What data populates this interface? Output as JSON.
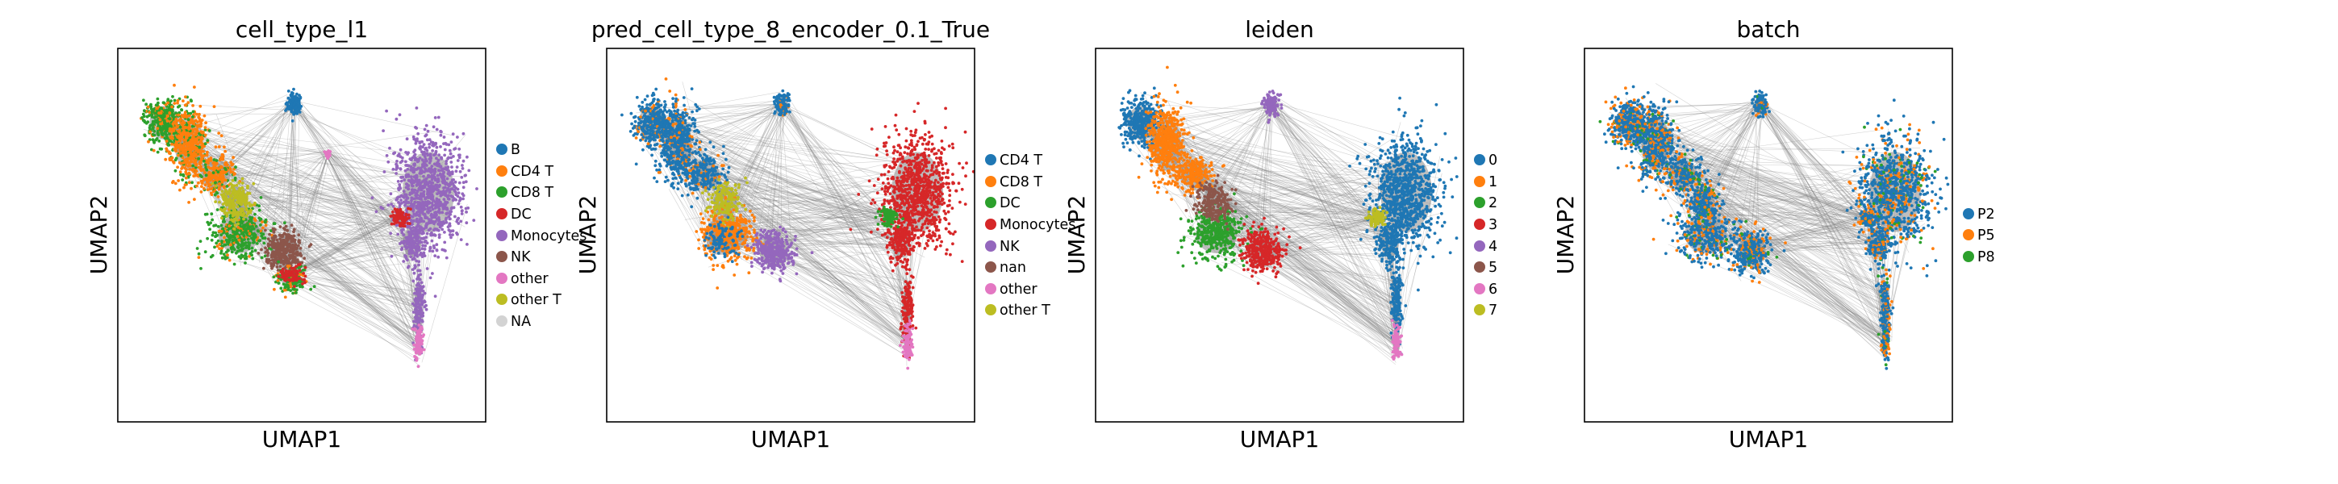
{
  "figure": {
    "panels": [
      {
        "title": "cell_type_l1",
        "xlabel": "UMAP1",
        "ylabel": "UMAP2",
        "legend": [
          {
            "label": "B",
            "color": "#1f77b4"
          },
          {
            "label": "CD4 T",
            "color": "#ff7f0e"
          },
          {
            "label": "CD8 T",
            "color": "#2ca02c"
          },
          {
            "label": "DC",
            "color": "#d62728"
          },
          {
            "label": "Monocytes",
            "color": "#9467bd"
          },
          {
            "label": "NK",
            "color": "#8c564b"
          },
          {
            "label": "other",
            "color": "#e377c2"
          },
          {
            "label": "other T",
            "color": "#bcbd22"
          },
          {
            "label": "NA",
            "color": "#d3d3d3"
          }
        ]
      },
      {
        "title": "pred_cell_type_8_encoder_0.1_True",
        "xlabel": "UMAP1",
        "ylabel": "UMAP2",
        "legend": [
          {
            "label": "CD4 T",
            "color": "#1f77b4"
          },
          {
            "label": "CD8 T",
            "color": "#ff7f0e"
          },
          {
            "label": "DC",
            "color": "#2ca02c"
          },
          {
            "label": "Monocytes",
            "color": "#d62728"
          },
          {
            "label": "NK",
            "color": "#9467bd"
          },
          {
            "label": "nan",
            "color": "#8c564b"
          },
          {
            "label": "other",
            "color": "#e377c2"
          },
          {
            "label": "other T",
            "color": "#bcbd22"
          }
        ]
      },
      {
        "title": "leiden",
        "xlabel": "UMAP1",
        "ylabel": "UMAP2",
        "legend": [
          {
            "label": "0",
            "color": "#1f77b4"
          },
          {
            "label": "1",
            "color": "#ff7f0e"
          },
          {
            "label": "2",
            "color": "#2ca02c"
          },
          {
            "label": "3",
            "color": "#d62728"
          },
          {
            "label": "4",
            "color": "#9467bd"
          },
          {
            "label": "5",
            "color": "#8c564b"
          },
          {
            "label": "6",
            "color": "#e377c2"
          },
          {
            "label": "7",
            "color": "#bcbd22"
          }
        ]
      },
      {
        "title": "batch",
        "xlabel": "UMAP1",
        "ylabel": "UMAP2",
        "legend": [
          {
            "label": "P2",
            "color": "#1f77b4"
          },
          {
            "label": "P5",
            "color": "#ff7f0e"
          },
          {
            "label": "P8",
            "color": "#2ca02c"
          }
        ]
      }
    ]
  },
  "chart_data": [
    {
      "type": "scatter",
      "title": "cell_type_l1",
      "xlabel": "UMAP1",
      "ylabel": "UMAP2",
      "grid": false,
      "legend_placement": "right",
      "edges_color": "#808080",
      "series": [
        {
          "name": "B",
          "color": "#1f77b4"
        },
        {
          "name": "CD4 T",
          "color": "#ff7f0e"
        },
        {
          "name": "CD8 T",
          "color": "#2ca02c"
        },
        {
          "name": "DC",
          "color": "#d62728"
        },
        {
          "name": "Monocytes",
          "color": "#9467bd"
        },
        {
          "name": "NK",
          "color": "#8c564b"
        },
        {
          "name": "other",
          "color": "#e377c2"
        },
        {
          "name": "other T",
          "color": "#bcbd22"
        },
        {
          "name": "NA",
          "color": "#d3d3d3"
        }
      ]
    },
    {
      "type": "scatter",
      "title": "pred_cell_type_8_encoder_0.1_True",
      "xlabel": "UMAP1",
      "ylabel": "UMAP2",
      "grid": false,
      "legend_placement": "right",
      "edges_color": "#808080",
      "series": [
        {
          "name": "CD4 T",
          "color": "#1f77b4"
        },
        {
          "name": "CD8 T",
          "color": "#ff7f0e"
        },
        {
          "name": "DC",
          "color": "#2ca02c"
        },
        {
          "name": "Monocytes",
          "color": "#d62728"
        },
        {
          "name": "NK",
          "color": "#9467bd"
        },
        {
          "name": "nan",
          "color": "#8c564b"
        },
        {
          "name": "other",
          "color": "#e377c2"
        },
        {
          "name": "other T",
          "color": "#bcbd22"
        }
      ]
    },
    {
      "type": "scatter",
      "title": "leiden",
      "xlabel": "UMAP1",
      "ylabel": "UMAP2",
      "grid": false,
      "legend_placement": "right",
      "edges_color": "#808080",
      "series": [
        {
          "name": "0",
          "color": "#1f77b4"
        },
        {
          "name": "1",
          "color": "#ff7f0e"
        },
        {
          "name": "2",
          "color": "#2ca02c"
        },
        {
          "name": "3",
          "color": "#d62728"
        },
        {
          "name": "4",
          "color": "#9467bd"
        },
        {
          "name": "5",
          "color": "#8c564b"
        },
        {
          "name": "6",
          "color": "#e377c2"
        },
        {
          "name": "7",
          "color": "#bcbd22"
        }
      ]
    },
    {
      "type": "scatter",
      "title": "batch",
      "xlabel": "UMAP1",
      "ylabel": "UMAP2",
      "grid": false,
      "legend_placement": "right",
      "edges_color": "#808080",
      "series": [
        {
          "name": "P2",
          "color": "#1f77b4"
        },
        {
          "name": "P5",
          "color": "#ff7f0e"
        },
        {
          "name": "P8",
          "color": "#2ca02c"
        }
      ]
    }
  ]
}
